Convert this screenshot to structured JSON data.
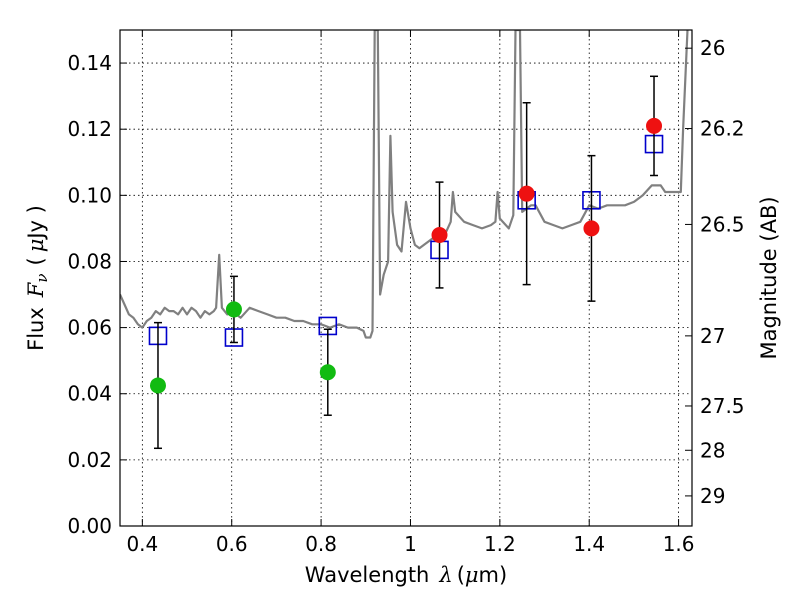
{
  "chart_data": {
    "type": "scatter",
    "title": "",
    "xlabel": "Wavelength",
    "xlabel_symbol": "λ",
    "xlabel_unit_open": "(",
    "xlabel_unit_mu": "μ",
    "xlabel_unit_rest": "m)",
    "ylabel": "Flux",
    "ylabel_symbol": "F",
    "ylabel_subscript": "ν",
    "ylabel_unit_open": "(",
    "ylabel_unit_mu": "μ",
    "ylabel_unit_rest": "Jy )",
    "y2label": "Magnitude (AB)",
    "xlim": [
      0.35,
      1.63
    ],
    "ylim": [
      0.0,
      0.15
    ],
    "grid": true,
    "x_ticks": [
      0.4,
      0.6,
      0.8,
      1.0,
      1.2,
      1.4,
      1.6
    ],
    "x_tick_labels": [
      "0.4",
      "0.6",
      "0.8",
      "1",
      "1.2",
      "1.4",
      "1.6"
    ],
    "y_ticks": [
      0.0,
      0.02,
      0.04,
      0.06,
      0.08,
      0.1,
      0.12,
      0.14
    ],
    "y_tick_labels": [
      "0.00",
      "0.02",
      "0.04",
      "0.06",
      "0.08",
      "0.10",
      "0.12",
      "0.14"
    ],
    "y2_ticks": [
      {
        "label": "26",
        "flux": 0.1445
      },
      {
        "label": "26.2",
        "flux": 0.1202
      },
      {
        "label": "26.5",
        "flux": 0.0912
      },
      {
        "label": "27",
        "flux": 0.0575
      },
      {
        "label": "27.5",
        "flux": 0.0363
      },
      {
        "label": "28",
        "flux": 0.0229
      },
      {
        "label": "29",
        "flux": 0.0091
      }
    ],
    "colors": {
      "spectrum": "#808080",
      "model_box": "#0000cc",
      "green_point": "#11bb11",
      "red_point": "#ee1111",
      "error_bar": "#000000"
    },
    "series": [
      {
        "marker": "square",
        "points": [
          {
            "x": 0.435,
            "y": 0.0575
          },
          {
            "x": 0.605,
            "y": 0.057
          },
          {
            "x": 0.815,
            "y": 0.0605
          },
          {
            "x": 1.065,
            "y": 0.0835
          },
          {
            "x": 1.26,
            "y": 0.0985
          },
          {
            "x": 1.405,
            "y": 0.0985
          },
          {
            "x": 1.545,
            "y": 0.1155
          }
        ]
      },
      {
        "marker": "circle-green",
        "points": [
          {
            "x": 0.435,
            "y": 0.0425,
            "yerr_low": 0.0235,
            "yerr_high": 0.0615
          },
          {
            "x": 0.605,
            "y": 0.0655,
            "yerr_low": 0.0555,
            "yerr_high": 0.0755
          },
          {
            "x": 0.815,
            "y": 0.0465,
            "yerr_low": 0.0335,
            "yerr_high": 0.0595
          }
        ]
      },
      {
        "marker": "circle-red",
        "points": [
          {
            "x": 1.065,
            "y": 0.088,
            "yerr_low": 0.072,
            "yerr_high": 0.104
          },
          {
            "x": 1.26,
            "y": 0.1005,
            "yerr_low": 0.073,
            "yerr_high": 0.128
          },
          {
            "x": 1.405,
            "y": 0.09,
            "yerr_low": 0.068,
            "yerr_high": 0.112
          },
          {
            "x": 1.545,
            "y": 0.121,
            "yerr_low": 0.106,
            "yerr_high": 0.136
          }
        ]
      }
    ],
    "spectrum": [
      [
        0.35,
        0.07
      ],
      [
        0.36,
        0.067
      ],
      [
        0.37,
        0.064
      ],
      [
        0.38,
        0.063
      ],
      [
        0.39,
        0.061
      ],
      [
        0.4,
        0.06
      ],
      [
        0.41,
        0.062
      ],
      [
        0.42,
        0.063
      ],
      [
        0.43,
        0.065
      ],
      [
        0.44,
        0.064
      ],
      [
        0.45,
        0.066
      ],
      [
        0.46,
        0.065
      ],
      [
        0.47,
        0.065
      ],
      [
        0.48,
        0.064
      ],
      [
        0.49,
        0.066
      ],
      [
        0.5,
        0.064
      ],
      [
        0.51,
        0.066
      ],
      [
        0.52,
        0.065
      ],
      [
        0.53,
        0.063
      ],
      [
        0.54,
        0.065
      ],
      [
        0.55,
        0.064
      ],
      [
        0.56,
        0.065
      ],
      [
        0.565,
        0.066
      ],
      [
        0.572,
        0.082
      ],
      [
        0.578,
        0.066
      ],
      [
        0.59,
        0.064
      ],
      [
        0.6,
        0.065
      ],
      [
        0.62,
        0.063
      ],
      [
        0.64,
        0.066
      ],
      [
        0.66,
        0.065
      ],
      [
        0.68,
        0.064
      ],
      [
        0.7,
        0.063
      ],
      [
        0.72,
        0.063
      ],
      [
        0.74,
        0.062
      ],
      [
        0.76,
        0.062
      ],
      [
        0.78,
        0.061
      ],
      [
        0.8,
        0.061
      ],
      [
        0.82,
        0.06
      ],
      [
        0.84,
        0.061
      ],
      [
        0.86,
        0.06
      ],
      [
        0.88,
        0.06
      ],
      [
        0.895,
        0.059
      ],
      [
        0.9,
        0.057
      ],
      [
        0.91,
        0.057
      ],
      [
        0.915,
        0.059
      ],
      [
        0.92,
        0.15
      ],
      [
        0.927,
        0.15
      ],
      [
        0.932,
        0.07
      ],
      [
        0.94,
        0.076
      ],
      [
        0.95,
        0.08
      ],
      [
        0.955,
        0.118
      ],
      [
        0.96,
        0.095
      ],
      [
        0.97,
        0.085
      ],
      [
        0.98,
        0.083
      ],
      [
        0.99,
        0.098
      ],
      [
        1.0,
        0.09
      ],
      [
        1.01,
        0.085
      ],
      [
        1.02,
        0.084
      ],
      [
        1.03,
        0.085
      ],
      [
        1.04,
        0.086
      ],
      [
        1.05,
        0.087
      ],
      [
        1.06,
        0.087
      ],
      [
        1.07,
        0.088
      ],
      [
        1.08,
        0.089
      ],
      [
        1.09,
        0.092
      ],
      [
        1.095,
        0.101
      ],
      [
        1.1,
        0.095
      ],
      [
        1.12,
        0.092
      ],
      [
        1.14,
        0.091
      ],
      [
        1.16,
        0.09
      ],
      [
        1.18,
        0.091
      ],
      [
        1.19,
        0.092
      ],
      [
        1.195,
        0.101
      ],
      [
        1.2,
        0.093
      ],
      [
        1.22,
        0.09
      ],
      [
        1.23,
        0.094
      ],
      [
        1.235,
        0.15
      ],
      [
        1.245,
        0.15
      ],
      [
        1.25,
        0.095
      ],
      [
        1.27,
        0.097
      ],
      [
        1.28,
        0.097
      ],
      [
        1.3,
        0.092
      ],
      [
        1.32,
        0.091
      ],
      [
        1.34,
        0.09
      ],
      [
        1.36,
        0.091
      ],
      [
        1.38,
        0.092
      ],
      [
        1.4,
        0.097
      ],
      [
        1.42,
        0.096
      ],
      [
        1.44,
        0.097
      ],
      [
        1.46,
        0.097
      ],
      [
        1.48,
        0.097
      ],
      [
        1.5,
        0.098
      ],
      [
        1.52,
        0.1
      ],
      [
        1.54,
        0.103
      ],
      [
        1.56,
        0.103
      ],
      [
        1.57,
        0.101
      ],
      [
        1.6,
        0.101
      ],
      [
        1.605,
        0.101
      ],
      [
        1.61,
        0.12
      ],
      [
        1.615,
        0.135
      ],
      [
        1.62,
        0.15
      ]
    ]
  }
}
